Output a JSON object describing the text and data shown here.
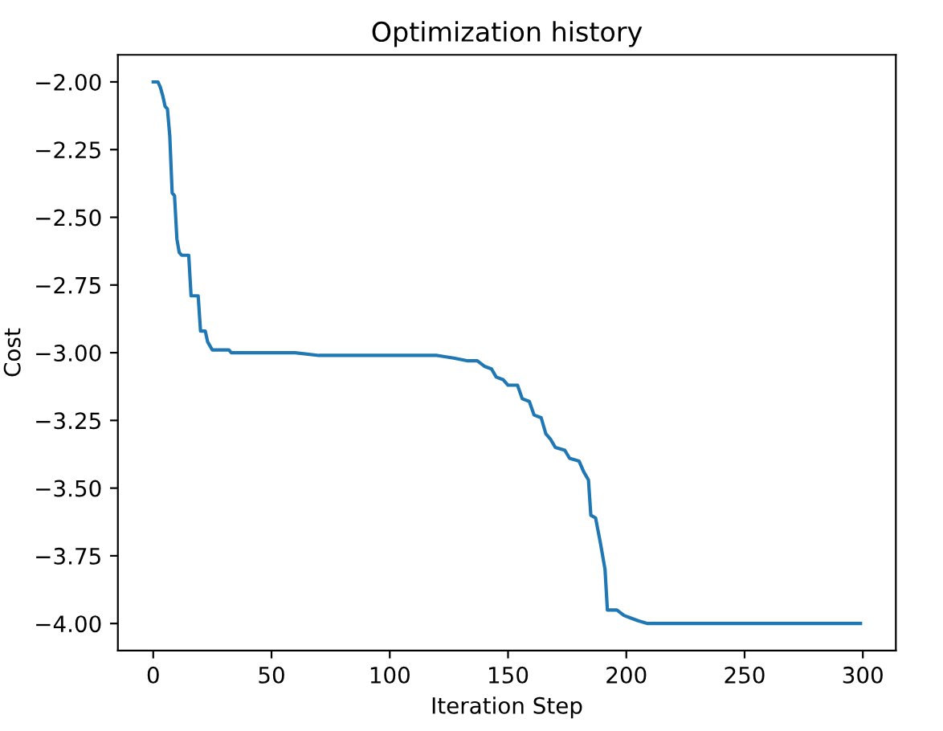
{
  "chart_data": {
    "type": "line",
    "title": "Optimization history",
    "xlabel": "Iteration Step",
    "ylabel": "Cost",
    "x": [
      0,
      2,
      3,
      4,
      5,
      6,
      7,
      8,
      9,
      10,
      11,
      12,
      15,
      16,
      19,
      20,
      22,
      23,
      25,
      32,
      33,
      60,
      70,
      120,
      127,
      133,
      137,
      140,
      143,
      145,
      148,
      150,
      154,
      156,
      159,
      161,
      164,
      166,
      168,
      170,
      174,
      176,
      180,
      182,
      184,
      185,
      187,
      189,
      191,
      192,
      196,
      199,
      202,
      205,
      209,
      299
    ],
    "series": [
      {
        "color": "#1f77b4",
        "values": [
          -2.0,
          -2.0,
          -2.02,
          -2.05,
          -2.09,
          -2.1,
          -2.2,
          -2.41,
          -2.42,
          -2.58,
          -2.63,
          -2.64,
          -2.64,
          -2.79,
          -2.79,
          -2.92,
          -2.92,
          -2.96,
          -2.99,
          -2.99,
          -3.0,
          -3.0,
          -3.01,
          -3.01,
          -3.02,
          -3.03,
          -3.03,
          -3.05,
          -3.06,
          -3.09,
          -3.1,
          -3.12,
          -3.12,
          -3.17,
          -3.18,
          -3.23,
          -3.24,
          -3.3,
          -3.32,
          -3.35,
          -3.36,
          -3.39,
          -3.4,
          -3.44,
          -3.47,
          -3.6,
          -3.61,
          -3.7,
          -3.8,
          -3.95,
          -3.95,
          -3.97,
          -3.98,
          -3.99,
          -4.0,
          -4.0
        ]
      }
    ],
    "xlim": [
      -14.95,
      313.95
    ],
    "ylim": [
      -4.1,
      -1.9
    ],
    "xticks": [
      0,
      50,
      100,
      150,
      200,
      250,
      300
    ],
    "yticks": [
      {
        "value": -4.0,
        "label": "−4.00"
      },
      {
        "value": -3.75,
        "label": "−3.75"
      },
      {
        "value": -3.5,
        "label": "−3.50"
      },
      {
        "value": -3.25,
        "label": "−3.25"
      },
      {
        "value": -3.0,
        "label": "−3.00"
      },
      {
        "value": -2.75,
        "label": "−2.75"
      },
      {
        "value": -2.5,
        "label": "−2.50"
      },
      {
        "value": -2.25,
        "label": "−2.25"
      },
      {
        "value": -2.0,
        "label": "−2.00"
      }
    ],
    "grid": false,
    "legend": false
  }
}
